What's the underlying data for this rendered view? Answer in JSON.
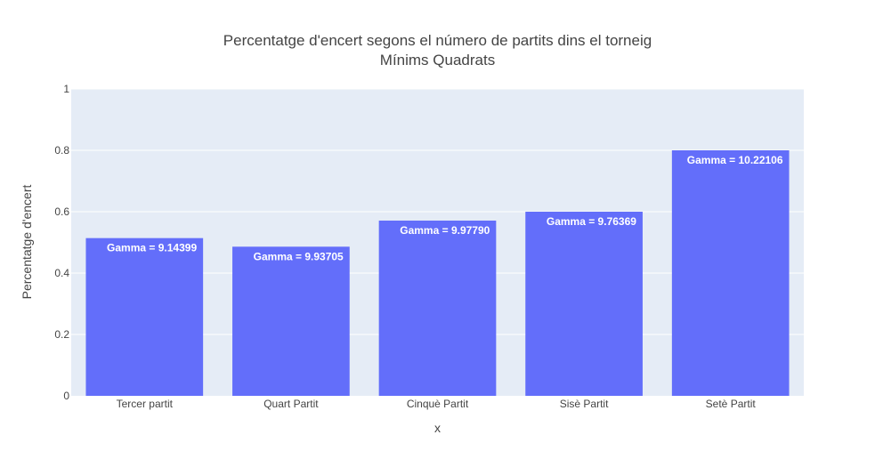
{
  "chart_data": {
    "type": "bar",
    "title": "Percentatge d'encert segons el número de partits dins el torneig",
    "subtitle": "Mínims Quadrats",
    "xlabel": "x",
    "ylabel": "Percentatge d'encert",
    "ylim": [
      0,
      1
    ],
    "yticks": [
      "0",
      "0.2",
      "0.4",
      "0.6",
      "0.8",
      "1"
    ],
    "grid": true,
    "categories": [
      "Tercer partit",
      "Quart Partit",
      "Cinquè Partit",
      "Sisè Partit",
      "Setè Partit"
    ],
    "values": [
      0.514,
      0.486,
      0.571,
      0.6,
      0.8
    ],
    "labels": [
      "Gamma = 9.14399",
      "Gamma = 9.93705",
      "Gamma = 9.97790",
      "Gamma = 9.76369",
      "Gamma = 10.22106"
    ],
    "colors": {
      "bar": "#636efa",
      "plot_bg": "#e5ecf6",
      "grid": "#ffffff"
    }
  }
}
